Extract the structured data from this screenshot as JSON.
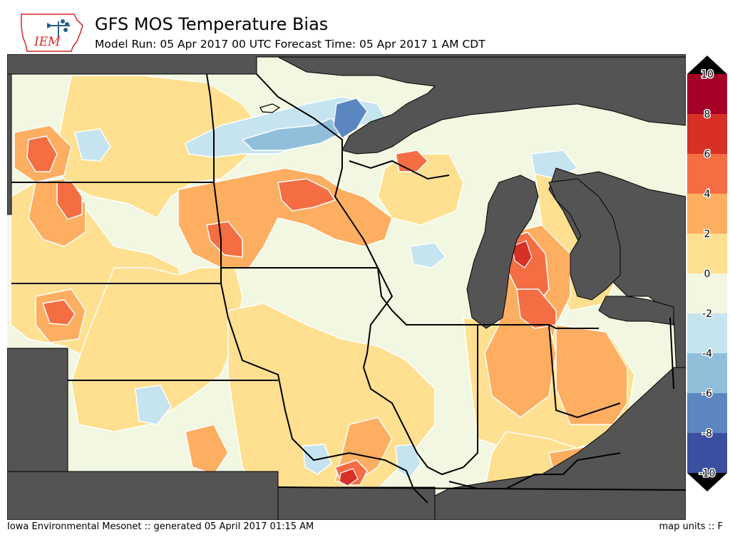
{
  "header": {
    "title": "GFS MOS Temperature Bias",
    "subtitle": "Model Run: 05 Apr 2017 00 UTC Forecast Time: 05 Apr 2017 1 AM CDT",
    "logo_text": "IEM"
  },
  "footer": {
    "credit": "Iowa Environmental Mesonet :: generated 05 April 2017 01:15 AM",
    "units": "map units :: F"
  },
  "colorbar": {
    "levels": [
      {
        "label": "10",
        "color": "#a50026"
      },
      {
        "label": "8",
        "color": "#d73027"
      },
      {
        "label": "6",
        "color": "#f46d43"
      },
      {
        "label": "4",
        "color": "#fdae61"
      },
      {
        "label": "2",
        "color": "#fee090"
      },
      {
        "label": "0",
        "color": "#f1f7e0"
      },
      {
        "label": "-2",
        "color": "#c5e4ef"
      },
      {
        "label": "-4",
        "color": "#91bfdb"
      },
      {
        "label": "-6",
        "color": "#5b86c0"
      },
      {
        "label": "-8",
        "color": "#3a4fa0"
      },
      {
        "label": "-10",
        "color": "#313695"
      }
    ],
    "over_color": "#000000",
    "under_color": "#000000"
  },
  "map": {
    "water_color": "#545454",
    "land_color": "#f1f7e0",
    "border_color": "#000000",
    "contour_line_color": "#ffffff"
  }
}
